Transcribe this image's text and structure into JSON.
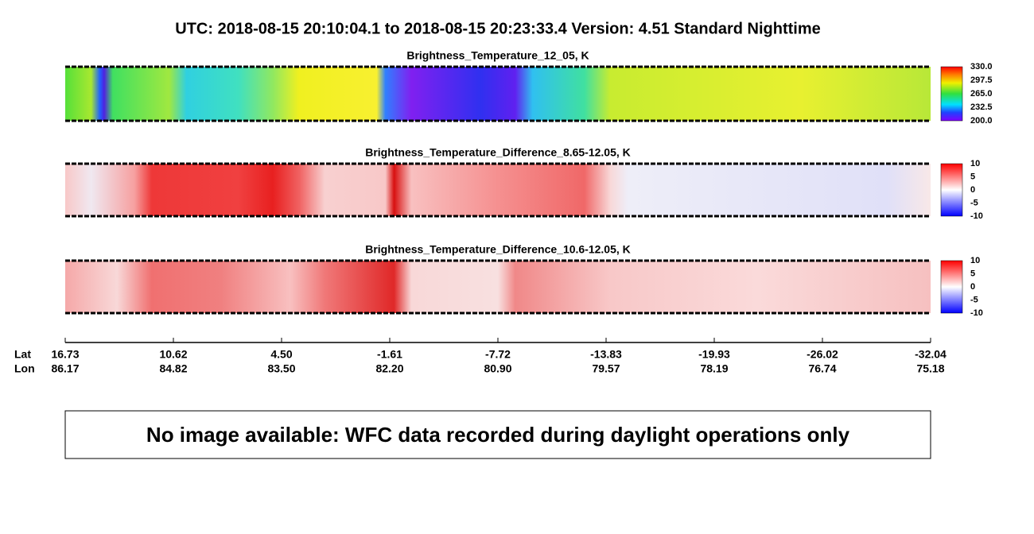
{
  "header": {
    "title": "UTC:  2018-08-15   20:10:04.1  to  2018-08-15   20:23:33.4    Version: 4.51  Standard Nighttime"
  },
  "panels": [
    {
      "title": "Brightness_Temperature_12_05, K",
      "colorbar_ticks": [
        "330.0",
        "297.5",
        "265.0",
        "232.5",
        "200.0"
      ]
    },
    {
      "title": "Brightness_Temperature_Difference_8.65-12.05, K",
      "colorbar_ticks": [
        "10",
        "5",
        "0",
        "-5",
        "-10"
      ]
    },
    {
      "title": "Brightness_Temperature_Difference_10.6-12.05, K",
      "colorbar_ticks": [
        "10",
        "5",
        "0",
        "-5",
        "-10"
      ]
    }
  ],
  "axis": {
    "lat_label": "Lat",
    "lon_label": "Lon",
    "lat": [
      "16.73",
      "10.62",
      "4.50",
      "-1.61",
      "-7.72",
      "-13.83",
      "-19.93",
      "-26.02",
      "-32.04"
    ],
    "lon": [
      "86.17",
      "84.82",
      "83.50",
      "82.20",
      "80.90",
      "79.57",
      "78.19",
      "76.74",
      "75.18"
    ]
  },
  "message": "No image available: WFC data recorded during daylight operations only"
}
